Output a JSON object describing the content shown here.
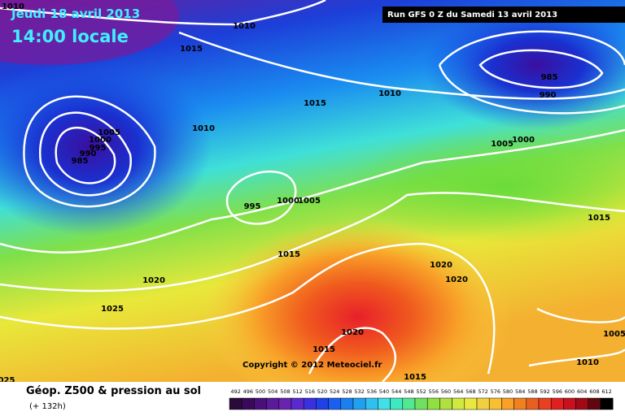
{
  "header": {
    "date": "Jeudi 18 avril 2013",
    "time": "14:00 locale",
    "run": "Run GFS 0 Z du Samedi 13 avril 2013"
  },
  "isobar_labels": [
    "1010",
    "1010",
    "1015",
    "1015",
    "1010",
    "985",
    "990",
    "1010",
    "1005",
    "1000",
    "995",
    "990",
    "985",
    "1005",
    "1000",
    "995",
    "1000",
    "1005",
    "1015",
    "1015",
    "1020",
    "1025",
    "1020",
    "1020",
    "1020",
    "1015",
    "1015",
    "1005",
    "1010",
    "025"
  ],
  "copyright": "Copyright © 2012 Meteociel.fr",
  "footer": {
    "title": "Géop. Z500 & pression au sol",
    "lead": "(+ 132h)"
  },
  "legend": {
    "labels": [
      492,
      496,
      500,
      504,
      508,
      512,
      516,
      520,
      524,
      528,
      532,
      536,
      540,
      544,
      548,
      552,
      556,
      560,
      564,
      568,
      572,
      576,
      580,
      584,
      588,
      592,
      596,
      600,
      604,
      608,
      612
    ]
  }
}
